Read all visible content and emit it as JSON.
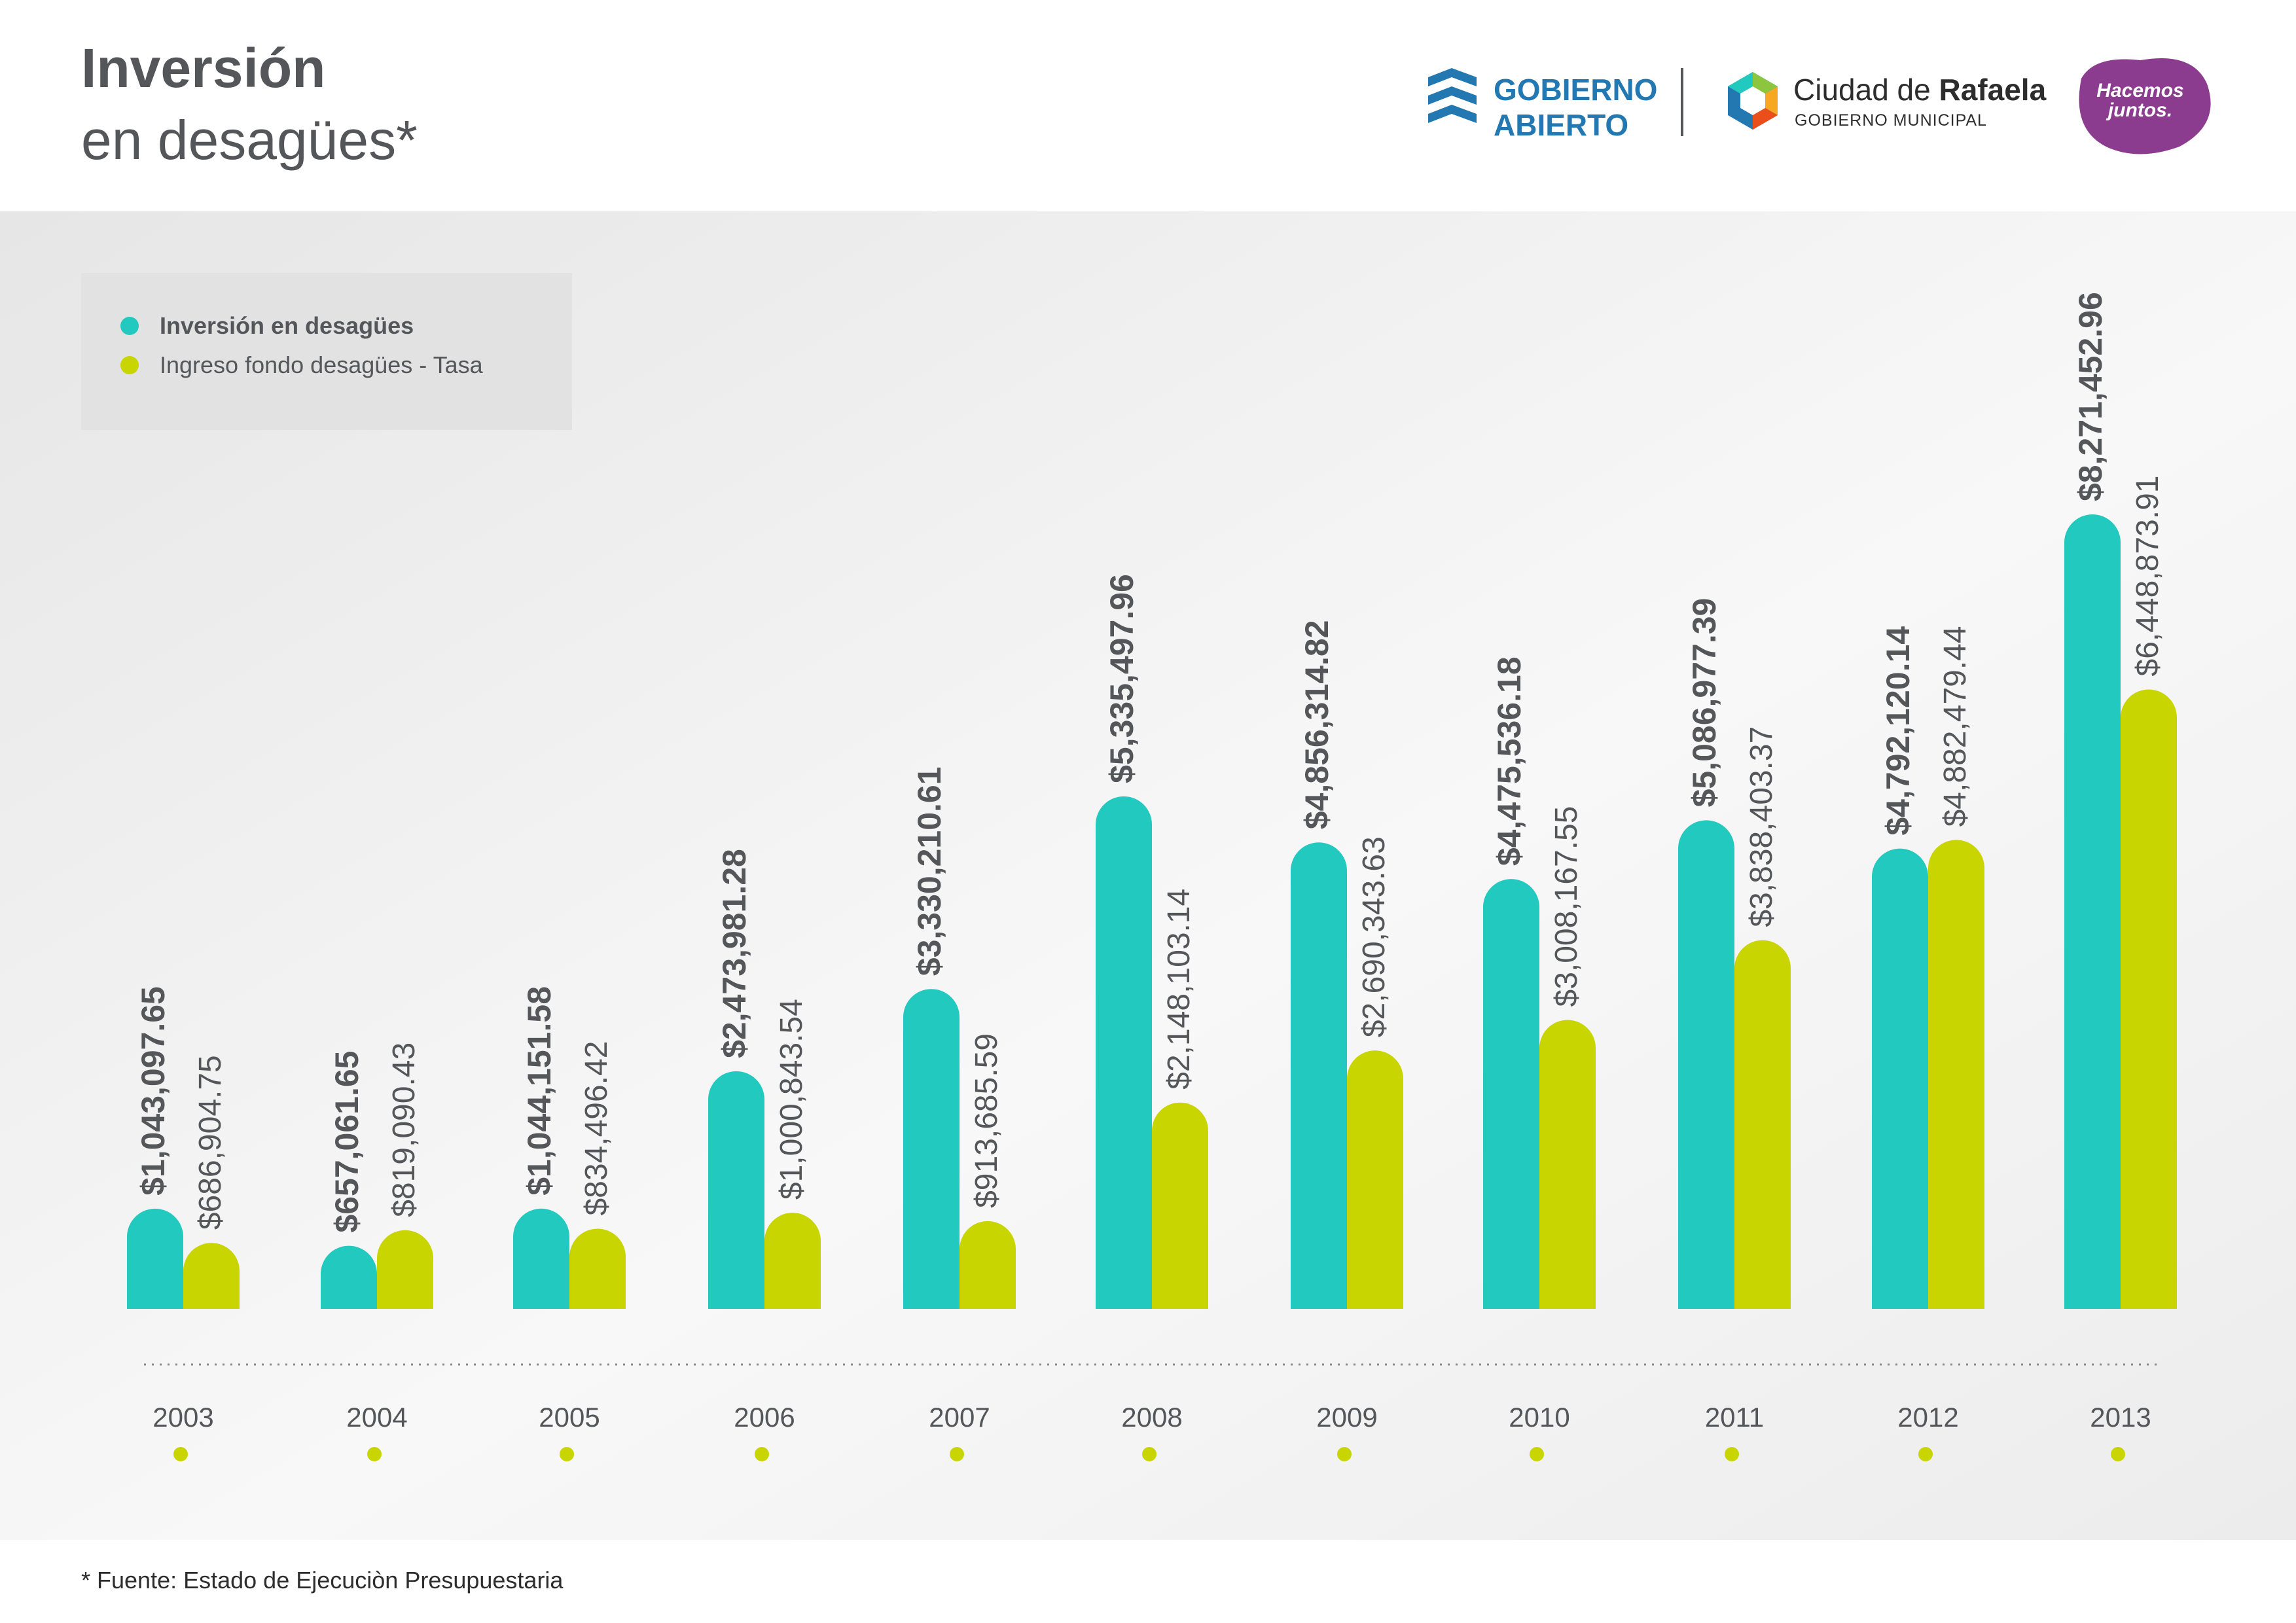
{
  "header": {
    "title_line1": "Inversión",
    "title_line2": "en desagües*"
  },
  "logos": {
    "gobierno_abierto_line1": "GOBIERNO",
    "gobierno_abierto_line2": "ABIERTO",
    "ciudad_prefix": "Ciudad de",
    "ciudad_name": "Rafaela",
    "ciudad_sub": "GOBIERNO MUNICIPAL",
    "hacemos_line1": "Hacemos",
    "hacemos_line2": "juntos."
  },
  "colors": {
    "series1": "#21c9be",
    "series2": "#c9d500",
    "text": "#55565a",
    "brand_blue": "#2378b1",
    "brand_purple": "#8c3c8e"
  },
  "chart_data": {
    "type": "bar",
    "title": "Inversión en desagües*",
    "categories": [
      "2003",
      "2004",
      "2005",
      "2006",
      "2007",
      "2008",
      "2009",
      "2010",
      "2011",
      "2012",
      "2013"
    ],
    "series": [
      {
        "name": "Inversión en desagües",
        "values": [
          1043097.65,
          657061.65,
          1044151.58,
          2473981.28,
          3330210.61,
          5335497.96,
          4856314.82,
          4475536.18,
          5086977.39,
          4792120.14,
          8271452.96
        ],
        "labels": [
          "$1,043,097.65",
          "$657,061.65",
          "$1,044,151.58",
          "$2,473,981.28",
          "$3,330,210.61",
          "$5,335,497.96",
          "$4,856,314.82",
          "$4,475,536.18",
          "$5,086,977.39",
          "$4,792,120.14",
          "$8,271,452.96"
        ]
      },
      {
        "name": "Ingreso fondo desagües - Tasa",
        "values": [
          686904.75,
          819090.43,
          834496.42,
          1000843.54,
          913685.59,
          2148103.14,
          2690343.63,
          3008167.55,
          3838403.37,
          4882479.44,
          6448873.91
        ],
        "labels": [
          "$686,904.75",
          "$819,090.43",
          "$834,496.42",
          "$1,000,843.54",
          "$913,685.59",
          "$2,148,103.14",
          "$2,690,343.63",
          "$3,008,167.55",
          "$3,838,403.37",
          "$4,882,479.44",
          "$6,448,873.91"
        ]
      }
    ],
    "ylim": [
      0,
      8271452.96
    ],
    "legend_position": "top-left",
    "grid": false
  },
  "footnote": "* Fuente: Estado de Ejecuciòn Presupuestaria"
}
